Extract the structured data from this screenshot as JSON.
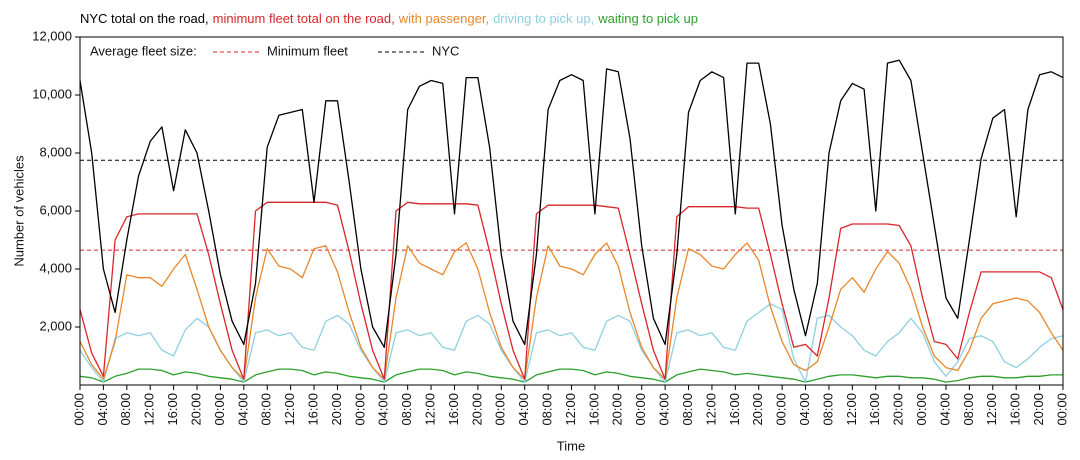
{
  "chart_data": {
    "type": "line",
    "xlabel": "Time",
    "ylabel": "Number of vehicles",
    "x": [
      0,
      2,
      4,
      6,
      8,
      10,
      12,
      14,
      16,
      18,
      20,
      22,
      24,
      26,
      28,
      30,
      32,
      34,
      36,
      38,
      40,
      42,
      44,
      46,
      48,
      50,
      52,
      54,
      56,
      58,
      60,
      62,
      64,
      66,
      68,
      70,
      72,
      74,
      76,
      78,
      80,
      82,
      84,
      86,
      88,
      90,
      92,
      94,
      96,
      98,
      100,
      102,
      104,
      106,
      108,
      110,
      112,
      114,
      116,
      118,
      120,
      122,
      124,
      126,
      128,
      130,
      132,
      134,
      136,
      138,
      140,
      142,
      144,
      146,
      148,
      150,
      152,
      154,
      156,
      158,
      160,
      162,
      164,
      166,
      168
    ],
    "xlim": [
      0,
      168
    ],
    "xticks": [
      {
        "value": 0,
        "label": "00:00"
      },
      {
        "value": 4,
        "label": "04:00"
      },
      {
        "value": 8,
        "label": "08:00"
      },
      {
        "value": 12,
        "label": "12:00"
      },
      {
        "value": 16,
        "label": "16:00"
      },
      {
        "value": 20,
        "label": "20:00"
      },
      {
        "value": 24,
        "label": "00:00"
      },
      {
        "value": 28,
        "label": "04:00"
      },
      {
        "value": 32,
        "label": "08:00"
      },
      {
        "value": 36,
        "label": "12:00"
      },
      {
        "value": 40,
        "label": "16:00"
      },
      {
        "value": 44,
        "label": "20:00"
      },
      {
        "value": 48,
        "label": "00:00"
      },
      {
        "value": 52,
        "label": "04:00"
      },
      {
        "value": 56,
        "label": "08:00"
      },
      {
        "value": 60,
        "label": "12:00"
      },
      {
        "value": 64,
        "label": "16:00"
      },
      {
        "value": 68,
        "label": "20:00"
      },
      {
        "value": 72,
        "label": "00:00"
      },
      {
        "value": 76,
        "label": "04:00"
      },
      {
        "value": 80,
        "label": "08:00"
      },
      {
        "value": 84,
        "label": "12:00"
      },
      {
        "value": 88,
        "label": "16:00"
      },
      {
        "value": 92,
        "label": "20:00"
      },
      {
        "value": 96,
        "label": "00:00"
      },
      {
        "value": 100,
        "label": "04:00"
      },
      {
        "value": 104,
        "label": "08:00"
      },
      {
        "value": 108,
        "label": "12:00"
      },
      {
        "value": 112,
        "label": "16:00"
      },
      {
        "value": 116,
        "label": "20:00"
      },
      {
        "value": 120,
        "label": "00:00"
      },
      {
        "value": 124,
        "label": "04:00"
      },
      {
        "value": 128,
        "label": "08:00"
      },
      {
        "value": 132,
        "label": "12:00"
      },
      {
        "value": 136,
        "label": "16:00"
      },
      {
        "value": 140,
        "label": "20:00"
      },
      {
        "value": 144,
        "label": "00:00"
      },
      {
        "value": 148,
        "label": "04:00"
      },
      {
        "value": 152,
        "label": "08:00"
      },
      {
        "value": 156,
        "label": "12:00"
      },
      {
        "value": 160,
        "label": "16:00"
      },
      {
        "value": 164,
        "label": "20:00"
      },
      {
        "value": 168,
        "label": "00:00"
      }
    ],
    "ylim": [
      0,
      12000
    ],
    "yticks": [
      {
        "value": 2000,
        "label": "2,000"
      },
      {
        "value": 4000,
        "label": "4,000"
      },
      {
        "value": 6000,
        "label": "6,000"
      },
      {
        "value": 8000,
        "label": "8,000"
      },
      {
        "value": 10000,
        "label": "10,000"
      },
      {
        "value": 12000,
        "label": "12,000"
      }
    ],
    "grid": false,
    "series": [
      {
        "name": "NYC total on the road,",
        "color": "#000000",
        "values": [
          10500,
          8000,
          4000,
          2500,
          5000,
          7200,
          8400,
          8900,
          6700,
          8800,
          8000,
          6000,
          3800,
          2200,
          1400,
          3500,
          8200,
          9300,
          9400,
          9500,
          6300,
          9800,
          9800,
          7000,
          4000,
          2000,
          1300,
          4500,
          9500,
          10300,
          10500,
          10400,
          5900,
          10600,
          10600,
          8200,
          4500,
          2200,
          1400,
          4500,
          9500,
          10500,
          10700,
          10500,
          5900,
          10900,
          10800,
          8500,
          4800,
          2300,
          1400,
          4500,
          9400,
          10500,
          10800,
          10600,
          5900,
          11100,
          11100,
          9000,
          5500,
          3300,
          1700,
          3500,
          8000,
          9800,
          10400,
          10200,
          6000,
          11100,
          11200,
          10500,
          8000,
          5500,
          3000,
          2300,
          5000,
          7800,
          9200,
          9500,
          5800,
          9500,
          10700,
          10800,
          10600
        ]
      },
      {
        "name": "minimum fleet total on the road,",
        "color": "#d7262b",
        "values": [
          2600,
          1100,
          300,
          5000,
          5800,
          5900,
          5900,
          5900,
          5900,
          5900,
          5900,
          4500,
          2800,
          1200,
          200,
          6000,
          6300,
          6300,
          6300,
          6300,
          6300,
          6300,
          6200,
          4600,
          2800,
          1200,
          200,
          6000,
          6300,
          6250,
          6250,
          6250,
          6250,
          6250,
          6200,
          4600,
          2800,
          1200,
          200,
          5900,
          6200,
          6200,
          6200,
          6200,
          6200,
          6150,
          6100,
          4500,
          2800,
          1200,
          200,
          5800,
          6150,
          6150,
          6150,
          6150,
          6150,
          6100,
          6100,
          4500,
          2800,
          1300,
          1400,
          1000,
          3000,
          5400,
          5550,
          5550,
          5550,
          5550,
          5500,
          4800,
          3000,
          1500,
          1400,
          900,
          2500,
          3900,
          3900,
          3900,
          3900,
          3900,
          3900,
          3700,
          2600
        ]
      },
      {
        "name": "with passenger,",
        "color": "#e8872a",
        "values": [
          1500,
          700,
          200,
          1500,
          3800,
          3700,
          3700,
          3400,
          4000,
          4500,
          3300,
          2000,
          1200,
          600,
          200,
          3000,
          4700,
          4100,
          4000,
          3700,
          4700,
          4800,
          3900,
          2500,
          1300,
          600,
          200,
          3000,
          4800,
          4200,
          4000,
          3800,
          4600,
          4900,
          4000,
          2500,
          1300,
          600,
          200,
          3000,
          4800,
          4100,
          4000,
          3800,
          4500,
          4900,
          4100,
          2500,
          1300,
          600,
          200,
          3000,
          4700,
          4500,
          4100,
          4000,
          4500,
          4900,
          4300,
          2700,
          1500,
          700,
          500,
          800,
          2000,
          3300,
          3700,
          3200,
          4000,
          4600,
          4200,
          3300,
          2000,
          1000,
          600,
          500,
          1200,
          2300,
          2800,
          2900,
          3000,
          2900,
          2500,
          1800,
          1200
        ]
      },
      {
        "name": "driving to pick up,",
        "color": "#8fd0e0",
        "values": [
          1200,
          600,
          100,
          1600,
          1800,
          1700,
          1800,
          1200,
          1000,
          1900,
          2300,
          2000,
          1200,
          600,
          100,
          1800,
          1900,
          1700,
          1800,
          1300,
          1200,
          2200,
          2400,
          2100,
          1200,
          600,
          100,
          1800,
          1900,
          1700,
          1800,
          1300,
          1200,
          2200,
          2400,
          2100,
          1200,
          600,
          100,
          1800,
          1900,
          1700,
          1800,
          1300,
          1200,
          2200,
          2400,
          2200,
          1200,
          600,
          100,
          1800,
          1900,
          1700,
          1800,
          1300,
          1200,
          2200,
          2500,
          2800,
          2600,
          900,
          100,
          2300,
          2400,
          2000,
          1700,
          1200,
          1000,
          1500,
          1800,
          2300,
          1800,
          800,
          300,
          800,
          1600,
          1700,
          1500,
          800,
          600,
          900,
          1300,
          1600,
          1700
        ]
      },
      {
        "name": "waiting to pick up",
        "color": "#2ca02c",
        "values": [
          300,
          250,
          100,
          300,
          400,
          550,
          550,
          500,
          350,
          450,
          400,
          300,
          250,
          200,
          100,
          350,
          450,
          550,
          550,
          500,
          350,
          450,
          400,
          300,
          250,
          200,
          100,
          350,
          450,
          550,
          550,
          500,
          350,
          450,
          400,
          300,
          250,
          200,
          100,
          350,
          450,
          550,
          550,
          500,
          350,
          450,
          400,
          300,
          250,
          200,
          100,
          350,
          450,
          550,
          500,
          450,
          350,
          400,
          350,
          300,
          250,
          200,
          100,
          200,
          300,
          350,
          350,
          300,
          250,
          300,
          300,
          250,
          250,
          200,
          100,
          150,
          250,
          300,
          300,
          250,
          250,
          300,
          300,
          350,
          350
        ]
      }
    ],
    "average_lines": {
      "title": "Average fleet size:",
      "lines": [
        {
          "name": "Minimum fleet",
          "value": 4650,
          "color": "#d7262b"
        },
        {
          "name": "NYC",
          "value": 7750,
          "color": "#000000"
        }
      ]
    }
  }
}
